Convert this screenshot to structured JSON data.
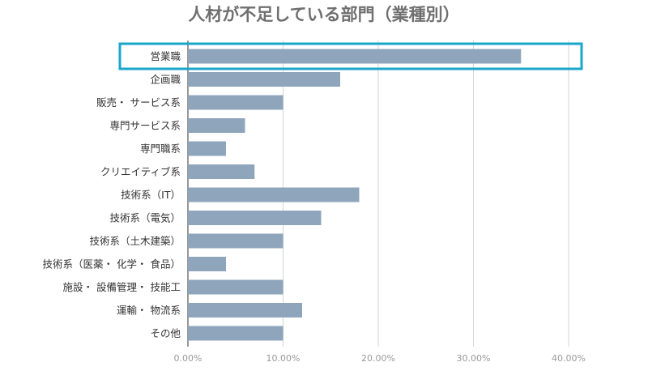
{
  "chart_data": {
    "type": "bar",
    "orientation": "horizontal",
    "title": "人材が不足している部門（業種別）",
    "xlabel": "",
    "ylabel": "",
    "categories": [
      "営業職",
      "企画職",
      "販売・ サービス系",
      "専門サービス系",
      "専門職系",
      "クリエイティブ系",
      "技術系（IT）",
      "技術系（電気）",
      "技術系（土木建築）",
      "技術系（医薬・ 化学・ 食品）",
      "施設・ 設備管理・ 技能工",
      "運輸・ 物流系",
      "その他"
    ],
    "values": [
      35,
      16,
      10,
      6,
      4,
      7,
      18,
      14,
      10,
      4,
      10,
      12,
      10
    ],
    "xlim": [
      0,
      40
    ],
    "x_ticks": [
      0,
      10,
      20,
      30,
      40
    ],
    "x_tick_labels": [
      "0.00%",
      "10.00%",
      "20.00%",
      "30.00%",
      "40.00%"
    ],
    "grid": true,
    "highlight_index": 0,
    "colors": {
      "bar": "#8fa5bc",
      "highlight_border": "#1aa6c9",
      "grid": "#d5d5d5",
      "title": "#6f6f6f"
    }
  }
}
